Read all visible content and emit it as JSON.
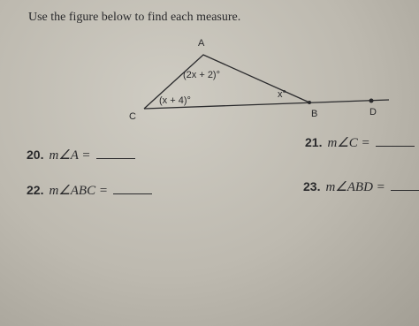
{
  "header": {
    "title": "Use the figure below to find each measure."
  },
  "figure": {
    "vertices": {
      "A": "A",
      "B": "B",
      "C": "C",
      "D": "D"
    },
    "angles": {
      "A": "(2x + 2)°",
      "C": "(x + 4)°",
      "B": "x°"
    }
  },
  "problems": [
    {
      "number": "20.",
      "text": "m∠A ="
    },
    {
      "number": "21.",
      "text": "m∠C ="
    },
    {
      "number": "22.",
      "text": "m∠ABC ="
    },
    {
      "number": "23.",
      "text": "m∠ABD ="
    }
  ]
}
